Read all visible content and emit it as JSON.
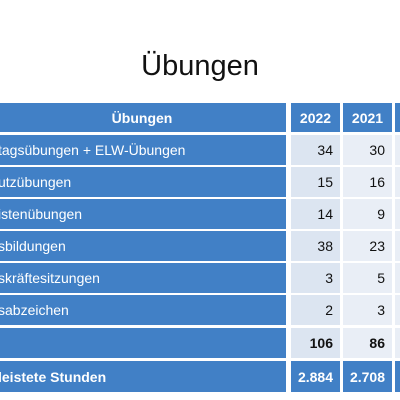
{
  "title": "Übungen",
  "table": {
    "header": [
      "Übungen",
      "2022",
      "2021"
    ],
    "rows": [
      [
        "tagsübungen + ELW-Übungen",
        "34",
        "30"
      ],
      [
        "utzübungen",
        "15",
        "16"
      ],
      [
        "istenübungen",
        "14",
        "9"
      ],
      [
        "sbildungen",
        "38",
        "23"
      ],
      [
        "skräftesitzungen",
        "3",
        "5"
      ],
      [
        "sabzeichen",
        "2",
        "3"
      ],
      [
        null,
        "106",
        "86"
      ],
      [
        "leistete Stunden",
        "2.884",
        "2.708"
      ]
    ]
  }
}
